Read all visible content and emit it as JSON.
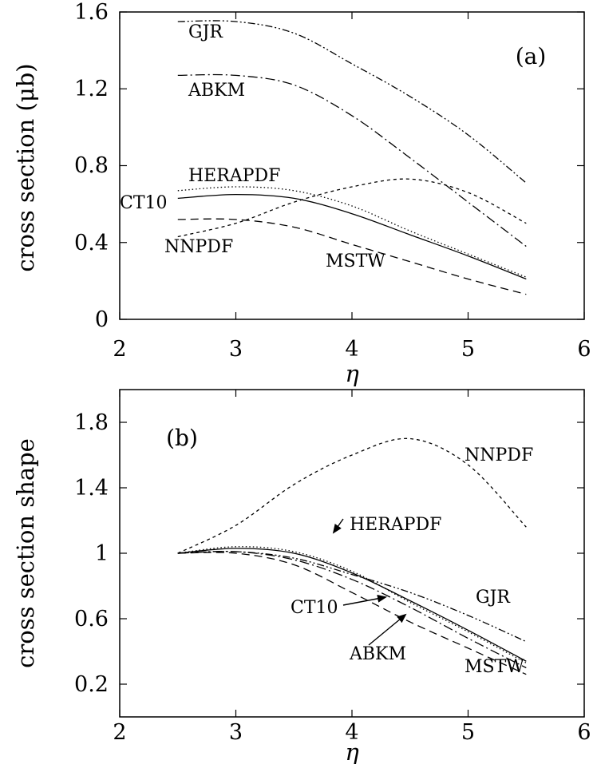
{
  "chart_data": [
    {
      "type": "line",
      "panel_label": "(a)",
      "xlabel": "η",
      "ylabel": "cross section (μb)",
      "xlim": [
        2,
        6
      ],
      "ylim": [
        0,
        1.6
      ],
      "xticks": [
        "2",
        "3",
        "4",
        "5",
        "6"
      ],
      "yticks": [
        "0",
        "0.4",
        "0.8",
        "1.2",
        "1.6"
      ],
      "x": [
        2.5,
        3.0,
        3.5,
        4.0,
        4.5,
        5.0,
        5.5
      ],
      "series": [
        {
          "name": "GJR",
          "dash": "dash-dot-dot",
          "values": [
            1.55,
            1.55,
            1.49,
            1.33,
            1.16,
            0.96,
            0.71
          ]
        },
        {
          "name": "ABKM",
          "dash": "dash-dot",
          "values": [
            1.27,
            1.27,
            1.22,
            1.06,
            0.84,
            0.61,
            0.38
          ]
        },
        {
          "name": "HERAPDF",
          "dash": "dotted",
          "values": [
            0.67,
            0.69,
            0.67,
            0.59,
            0.46,
            0.34,
            0.22
          ]
        },
        {
          "name": "CT10",
          "dash": "solid",
          "values": [
            0.63,
            0.65,
            0.63,
            0.55,
            0.44,
            0.33,
            0.21
          ]
        },
        {
          "name": "NNPDF",
          "dash": "short-dash",
          "values": [
            0.43,
            0.5,
            0.61,
            0.69,
            0.73,
            0.66,
            0.5
          ]
        },
        {
          "name": "MSTW",
          "dash": "long-dash",
          "values": [
            0.52,
            0.52,
            0.48,
            0.39,
            0.3,
            0.21,
            0.13
          ]
        }
      ]
    },
    {
      "type": "line",
      "panel_label": "(b)",
      "xlabel": "η",
      "ylabel": "cross section shape",
      "xlim": [
        2,
        6
      ],
      "ylim": [
        0,
        2.0
      ],
      "xticks": [
        "2",
        "3",
        "4",
        "5",
        "6"
      ],
      "yticks": [
        "0.2",
        "0.6",
        "1",
        "1.4",
        "1.8"
      ],
      "x": [
        2.5,
        3.0,
        3.5,
        4.0,
        4.5,
        5.0,
        5.5
      ],
      "series": [
        {
          "name": "NNPDF",
          "dash": "short-dash",
          "values": [
            1.0,
            1.17,
            1.42,
            1.6,
            1.7,
            1.54,
            1.16
          ]
        },
        {
          "name": "HERAPDF",
          "dash": "dotted",
          "values": [
            1.0,
            1.04,
            1.01,
            0.89,
            0.7,
            0.52,
            0.33
          ]
        },
        {
          "name": "CT10",
          "dash": "solid",
          "values": [
            1.0,
            1.03,
            1.0,
            0.88,
            0.71,
            0.53,
            0.34
          ]
        },
        {
          "name": "GJR",
          "dash": "dash-dot-dot",
          "values": [
            1.0,
            1.01,
            0.97,
            0.87,
            0.76,
            0.62,
            0.46
          ]
        },
        {
          "name": "ABKM",
          "dash": "dash-dot",
          "values": [
            1.0,
            1.01,
            0.96,
            0.84,
            0.67,
            0.48,
            0.3
          ]
        },
        {
          "name": "MSTW",
          "dash": "long-dash",
          "values": [
            1.0,
            1.0,
            0.93,
            0.76,
            0.58,
            0.42,
            0.26
          ]
        }
      ]
    }
  ]
}
